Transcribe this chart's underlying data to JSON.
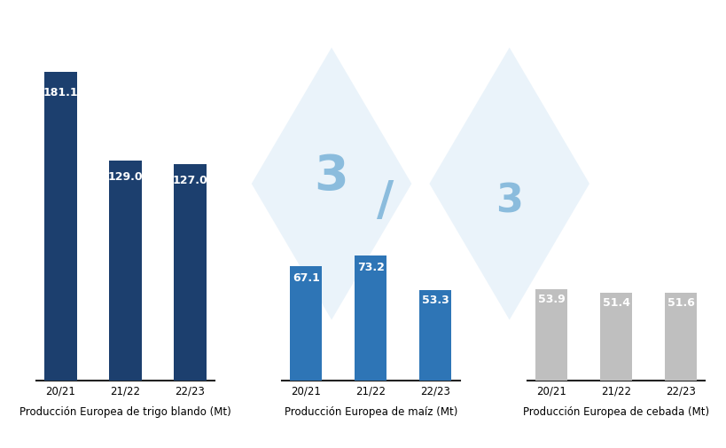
{
  "groups": [
    {
      "xlabel": "Producción Europea de trigo blando (Mt)",
      "categories": [
        "20/21",
        "21/22",
        "22/23"
      ],
      "values": [
        181.1,
        129.0,
        127.0
      ],
      "bar_color": "#1c3f6e",
      "label_color": "white"
    },
    {
      "xlabel": "Producción Europea de maíz (Mt)",
      "categories": [
        "20/21",
        "21/22",
        "22/23"
      ],
      "values": [
        67.1,
        73.2,
        53.3
      ],
      "bar_color": "#2e75b6",
      "label_color": "white"
    },
    {
      "xlabel": "Producción Europea de cebada (Mt)",
      "categories": [
        "20/21",
        "21/22",
        "22/23"
      ],
      "values": [
        53.9,
        51.4,
        51.6
      ],
      "bar_color": "#bfbfbf",
      "label_color": "white"
    }
  ],
  "background_color": "#ffffff",
  "bar_width": 0.5,
  "ylim": [
    0,
    210
  ],
  "value_fontsize": 9,
  "xlabel_fontsize": 8.5,
  "tick_fontsize": 8.5,
  "watermark_fill": "#daeaf7",
  "watermark_text_color": "#7ab3d8",
  "watermark_alpha": 0.55
}
